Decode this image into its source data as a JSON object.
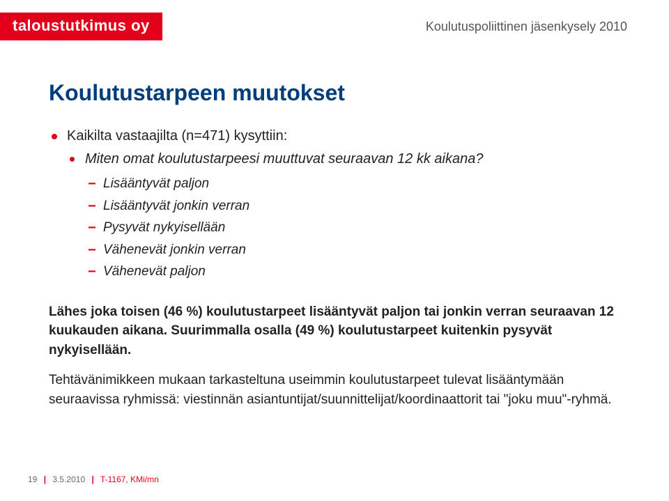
{
  "header": {
    "logo": "taloustutkimus oy",
    "right": "Koulutuspoliittinen jäsenkysely 2010"
  },
  "title": "Koulutustarpeen muutokset",
  "intro": "Kaikilta vastaajilta (n=471) kysyttiin:",
  "question": "Miten omat koulutustarpeesi muuttuvat seuraavan 12 kk aikana?",
  "options": [
    "Lisääntyvät paljon",
    "Lisääntyvät jonkin verran",
    "Pysyvät nykyisellään",
    "Vähenevät jonkin verran",
    "Vähenevät paljon"
  ],
  "summary1": "Lähes joka toisen (46 %) koulutustarpeet lisääntyvät paljon tai jonkin verran seuraavan 12 kuukauden aikana. Suurimmalla osalla (49 %) koulutustarpeet kuitenkin pysyvät nykyisellään.",
  "summary2": "Tehtävänimikkeen mukaan tarkasteltuna useimmin koulutustarpeet tulevat lisääntymään seuraavissa ryhmissä: viestinnän asiantuntijat/suunnittelijat/koordinaattorit tai \"joku muu\"-ryhmä.",
  "footer": {
    "page": "19",
    "date": "3.5.2010",
    "code": "T-1167, KMi/mn"
  },
  "colors": {
    "brand_red": "#e2001a",
    "title_blue": "#003d7c",
    "text": "#222222",
    "header_text": "#555555",
    "footer_text": "#666666",
    "background": "#ffffff"
  }
}
